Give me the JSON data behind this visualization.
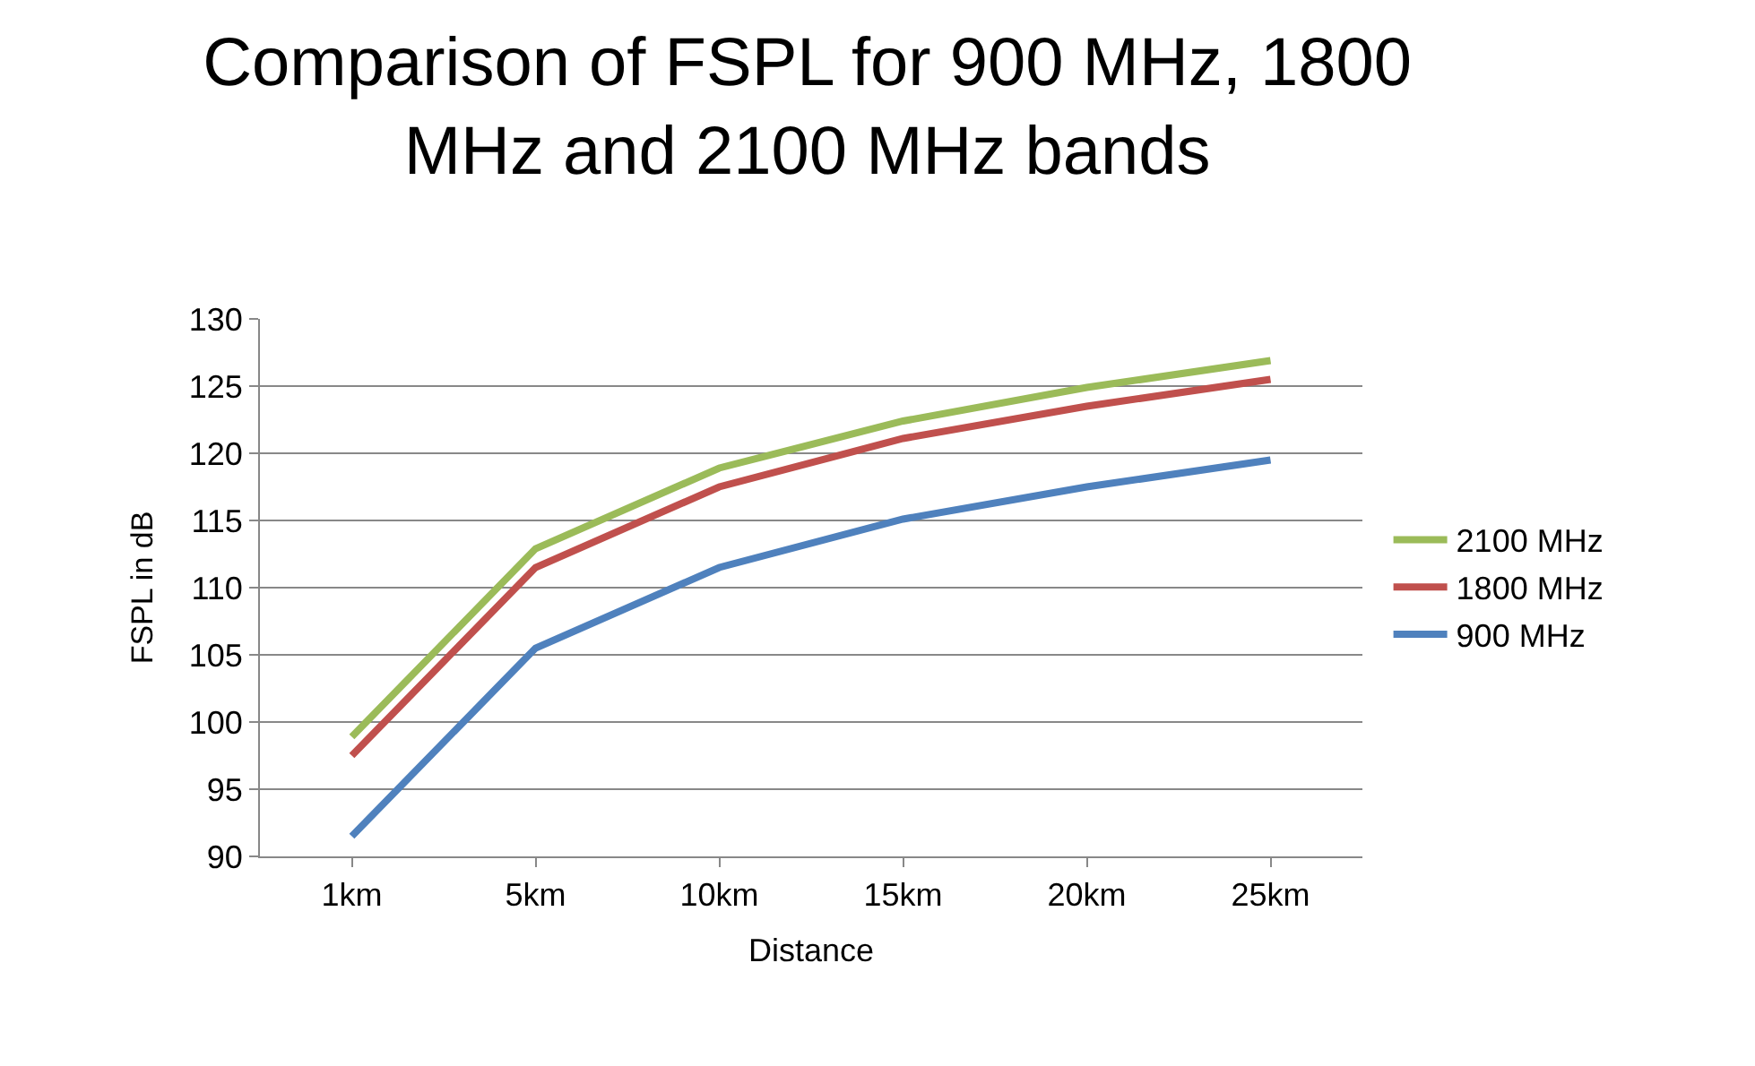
{
  "chart_data": {
    "type": "line",
    "title": "Comparison of FSPL for 900 MHz, 1800 MHz and 2100 MHz bands",
    "xlabel": "Distance",
    "ylabel": "FSPL in dB",
    "categories": [
      "1km",
      "5km",
      "10km",
      "15km",
      "20km",
      "25km"
    ],
    "series": [
      {
        "name": "2100 MHz",
        "color": "#9bbb59",
        "values": [
          98.9,
          112.9,
          118.9,
          122.4,
          124.9,
          126.9
        ]
      },
      {
        "name": "1800 MHz",
        "color": "#c0504d",
        "values": [
          97.5,
          111.5,
          117.5,
          121.1,
          123.5,
          125.5
        ]
      },
      {
        "name": "900 MHz",
        "color": "#4f81bd",
        "values": [
          91.5,
          105.5,
          111.5,
          115.1,
          117.5,
          119.5
        ]
      }
    ],
    "ylim": [
      90,
      130
    ],
    "yticks": [
      90,
      95,
      100,
      105,
      110,
      115,
      120,
      125,
      130
    ],
    "grid": "y",
    "legend": "right",
    "marker": "none",
    "line_style": "solid"
  }
}
